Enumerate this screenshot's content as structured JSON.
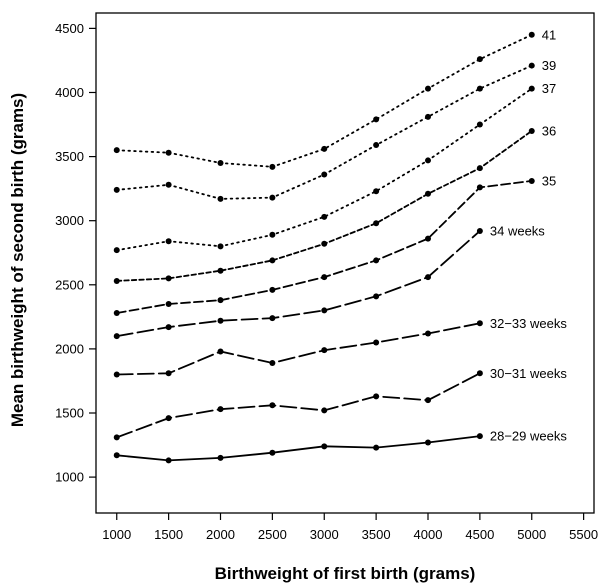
{
  "chart_data": {
    "type": "line",
    "xlabel": "Birthweight of first birth (grams)",
    "ylabel": "Mean birthweight of second birth (grams)",
    "xlim": [
      800,
      5600
    ],
    "ylim": [
      720,
      4620
    ],
    "xticks": [
      "1000",
      "1500",
      "2000",
      "2500",
      "3000",
      "3500",
      "4000",
      "4500",
      "5000",
      "5500"
    ],
    "yticks": [
      "1000",
      "1500",
      "2000",
      "2500",
      "3000",
      "3500",
      "4000",
      "4500"
    ],
    "grid": false,
    "legend": "none",
    "series": [
      {
        "name": "41",
        "style": "dotted",
        "x": [
          1000,
          1500,
          2000,
          2500,
          3000,
          3500,
          4000,
          4500,
          5000
        ],
        "values": [
          3550,
          3530,
          3450,
          3420,
          3560,
          3790,
          4030,
          4260,
          4450
        ]
      },
      {
        "name": "39",
        "style": "dotted",
        "x": [
          1000,
          1500,
          2000,
          2500,
          3000,
          3500,
          4000,
          4500,
          5000
        ],
        "values": [
          3240,
          3280,
          3170,
          3180,
          3360,
          3590,
          3810,
          4030,
          4210
        ]
      },
      {
        "name": "37",
        "style": "dotted",
        "x": [
          1000,
          1500,
          2000,
          2500,
          3000,
          3500,
          4000,
          4500,
          5000
        ],
        "values": [
          2770,
          2840,
          2800,
          2890,
          3030,
          3230,
          3470,
          3750,
          4030
        ]
      },
      {
        "name": "36",
        "style": "short-dash",
        "x": [
          1000,
          1500,
          2000,
          2500,
          3000,
          3500,
          4000,
          4500,
          5000
        ],
        "values": [
          2530,
          2550,
          2610,
          2690,
          2820,
          2980,
          3210,
          3410,
          3700
        ]
      },
      {
        "name": "35",
        "style": "medium-dash",
        "x": [
          1000,
          1500,
          2000,
          2500,
          3000,
          3500,
          4000,
          4500,
          5000
        ],
        "values": [
          2280,
          2350,
          2380,
          2460,
          2560,
          2690,
          2860,
          3260,
          3310
        ]
      },
      {
        "name": "34 weeks",
        "style": "long-dash",
        "x": [
          1000,
          1500,
          2000,
          2500,
          3000,
          3500,
          4000,
          4500
        ],
        "values": [
          2100,
          2170,
          2220,
          2240,
          2300,
          2410,
          2560,
          2920
        ]
      },
      {
        "name": "32−33 weeks",
        "style": "long-dash",
        "x": [
          1000,
          1500,
          2000,
          2500,
          3000,
          3500,
          4000,
          4500
        ],
        "values": [
          1800,
          1810,
          1980,
          1890,
          1990,
          2050,
          2120,
          2200
        ]
      },
      {
        "name": "30−31 weeks",
        "style": "long-dash",
        "x": [
          1000,
          1500,
          2000,
          2500,
          3000,
          3500,
          4000,
          4500
        ],
        "values": [
          1310,
          1460,
          1530,
          1560,
          1520,
          1630,
          1600,
          1810
        ]
      },
      {
        "name": "28−29 weeks",
        "style": "solid",
        "x": [
          1000,
          1500,
          2000,
          2500,
          3000,
          3500,
          4000,
          4500
        ],
        "values": [
          1170,
          1130,
          1150,
          1190,
          1240,
          1230,
          1270,
          1320
        ]
      }
    ]
  }
}
